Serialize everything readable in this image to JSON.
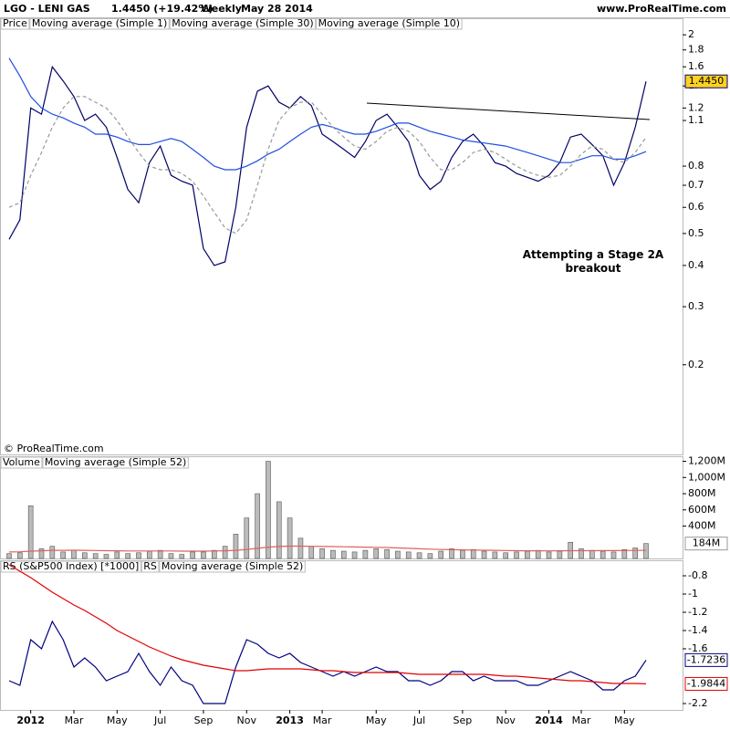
{
  "header": {
    "symbol": "LGO - LENI GAS",
    "quote": "1.4450 (+19.42%)",
    "period": "Weekly",
    "date": "May 28 2014",
    "site": "www.ProRealTime.com",
    "copyright": "© ProRealTime.com"
  },
  "chart_data": [
    {
      "type": "line",
      "panel_label": "Price",
      "log_scale": true,
      "annotation": "Attempting a Stage 2A breakout",
      "categories": [
        null,
        null,
        "2012",
        null,
        null,
        null,
        "Mar",
        null,
        null,
        null,
        "May",
        null,
        null,
        null,
        "Jul",
        null,
        null,
        null,
        "Sep",
        null,
        null,
        null,
        "Nov",
        null,
        null,
        null,
        "2013",
        null,
        null,
        "Mar",
        null,
        null,
        null,
        null,
        "May",
        null,
        null,
        null,
        "Jul",
        null,
        null,
        null,
        "Sep",
        null,
        null,
        null,
        "Nov",
        null,
        null,
        null,
        "2014",
        null,
        null,
        "Mar",
        null,
        null,
        null,
        "May",
        null,
        null
      ],
      "ylim": [
        0.107,
        2.08
      ],
      "yticks": [
        2,
        1.8,
        1.6,
        1.4,
        1.2,
        1.1,
        0.8,
        0.7,
        0.6,
        0.5,
        0.4,
        0.3,
        0.2
      ],
      "series": [
        {
          "name": "Moving average (Simple 1)",
          "color": "#000066",
          "dash": false,
          "values": [
            0.48,
            0.55,
            1.2,
            1.15,
            1.6,
            1.45,
            1.3,
            1.1,
            1.15,
            1.05,
            0.85,
            0.68,
            0.62,
            0.82,
            0.92,
            0.75,
            0.72,
            0.7,
            0.45,
            0.4,
            0.41,
            0.6,
            1.05,
            1.35,
            1.4,
            1.25,
            1.2,
            1.3,
            1.22,
            1.0,
            0.95,
            0.9,
            0.85,
            0.95,
            1.1,
            1.15,
            1.05,
            0.95,
            0.75,
            0.68,
            0.72,
            0.85,
            0.95,
            1.0,
            0.92,
            0.82,
            0.8,
            0.76,
            0.74,
            0.72,
            0.75,
            0.82,
            0.98,
            1.0,
            0.93,
            0.86,
            0.7,
            0.82,
            1.05,
            1.445
          ],
          "value_labels": [
            null,
            null,
            null,
            null,
            null,
            null,
            null,
            null,
            null,
            null,
            null,
            null,
            null,
            null,
            null,
            null,
            null,
            null,
            null,
            null,
            null,
            null,
            null,
            null,
            null,
            null,
            null,
            null,
            null,
            null,
            null,
            null,
            null,
            null,
            null,
            null,
            null,
            null,
            null,
            null,
            null,
            null,
            null,
            null,
            null,
            null,
            null,
            null,
            null,
            null,
            null,
            null,
            null,
            null,
            null,
            null,
            null,
            null,
            null,
            "1.4450"
          ]
        },
        {
          "name": "Moving average (Simple 30)",
          "color": "#1f4fe0",
          "dash": false,
          "values": [
            1.7,
            1.5,
            1.3,
            1.2,
            1.15,
            1.12,
            1.08,
            1.05,
            1.0,
            1.0,
            0.98,
            0.95,
            0.93,
            0.93,
            0.95,
            0.97,
            0.95,
            0.9,
            0.85,
            0.8,
            0.78,
            0.78,
            0.8,
            0.83,
            0.87,
            0.9,
            0.95,
            1.0,
            1.05,
            1.07,
            1.05,
            1.02,
            1.0,
            1.0,
            1.02,
            1.05,
            1.08,
            1.08,
            1.05,
            1.02,
            1.0,
            0.98,
            0.96,
            0.95,
            0.94,
            0.93,
            0.92,
            0.9,
            0.88,
            0.86,
            0.84,
            0.82,
            0.82,
            0.84,
            0.86,
            0.86,
            0.84,
            0.84,
            0.86,
            0.8855
          ]
        },
        {
          "name": "Moving average (Simple 10)",
          "color": "#999999",
          "dash": true,
          "values": [
            0.6,
            0.62,
            0.75,
            0.88,
            1.05,
            1.2,
            1.3,
            1.3,
            1.25,
            1.2,
            1.1,
            0.98,
            0.88,
            0.8,
            0.78,
            0.78,
            0.76,
            0.72,
            0.65,
            0.58,
            0.52,
            0.5,
            0.55,
            0.7,
            0.9,
            1.1,
            1.2,
            1.25,
            1.25,
            1.15,
            1.05,
            0.98,
            0.92,
            0.9,
            0.95,
            1.02,
            1.05,
            1.02,
            0.95,
            0.85,
            0.78,
            0.78,
            0.82,
            0.88,
            0.9,
            0.88,
            0.84,
            0.8,
            0.77,
            0.75,
            0.74,
            0.75,
            0.8,
            0.87,
            0.92,
            0.9,
            0.84,
            0.82,
            0.88,
            0.9775
          ]
        }
      ]
    },
    {
      "type": "bar",
      "panel_label": "Volume",
      "ylim": [
        0,
        1240
      ],
      "yticks": [
        {
          "value": 1200,
          "label": "1,200M"
        },
        {
          "value": 1000,
          "label": "1,000M"
        },
        {
          "value": 800,
          "label": "800M"
        },
        {
          "value": 600,
          "label": "600M"
        },
        {
          "value": 400,
          "label": "400M"
        }
      ],
      "series": [
        {
          "name": "Volume",
          "color": "#888888",
          "type": "bar",
          "values": [
            60,
            70,
            650,
            120,
            150,
            80,
            100,
            70,
            60,
            50,
            80,
            60,
            70,
            90,
            100,
            60,
            50,
            80,
            80,
            100,
            150,
            300,
            500,
            800,
            1200,
            700,
            500,
            250,
            150,
            120,
            100,
            90,
            80,
            100,
            120,
            110,
            90,
            80,
            70,
            60,
            90,
            120,
            100,
            110,
            90,
            80,
            70,
            80,
            90,
            100,
            80,
            90,
            200,
            120,
            100,
            90,
            80,
            110,
            130,
            184
          ],
          "value_labels": [
            null,
            null,
            null,
            null,
            null,
            null,
            null,
            null,
            null,
            null,
            null,
            null,
            null,
            null,
            null,
            null,
            null,
            null,
            null,
            null,
            null,
            null,
            null,
            null,
            null,
            null,
            null,
            null,
            null,
            null,
            null,
            null,
            null,
            null,
            null,
            null,
            null,
            null,
            null,
            null,
            null,
            null,
            null,
            null,
            null,
            null,
            null,
            null,
            null,
            null,
            null,
            null,
            null,
            null,
            null,
            null,
            null,
            null,
            null,
            "184M"
          ]
        },
        {
          "name": "Moving average (Simple 52)",
          "color": "#e06060",
          "type": "line",
          "values": [
            80,
            82,
            90,
            95,
            100,
            100,
            102,
            100,
            98,
            96,
            95,
            93,
            92,
            92,
            93,
            92,
            90,
            90,
            90,
            92,
            95,
            100,
            110,
            125,
            140,
            148,
            152,
            152,
            150,
            148,
            146,
            144,
            142,
            140,
            138,
            135,
            130,
            125,
            120,
            115,
            110,
            108,
            106,
            104,
            102,
            100,
            98,
            96,
            95,
            95,
            94,
            95,
            96,
            96,
            96,
            97,
            97,
            98,
            99,
            100
          ]
        }
      ]
    },
    {
      "type": "line",
      "panel_label": "RS (S&P500 Index) [*1000]",
      "ylim": [
        -2.27,
        -0.65
      ],
      "yticks": [
        -0.8,
        -1,
        -1.2,
        -1.4,
        -1.6,
        -2.2
      ],
      "series": [
        {
          "name": "RS",
          "color": "#000080",
          "dash": false,
          "values": [
            -1.95,
            -2.0,
            -1.5,
            -1.6,
            -1.3,
            -1.5,
            -1.8,
            -1.7,
            -1.8,
            -1.95,
            -1.9,
            -1.85,
            -1.65,
            -1.85,
            -2.0,
            -1.8,
            -1.95,
            -2.0,
            -2.2,
            -2.2,
            -2.2,
            -1.8,
            -1.5,
            -1.55,
            -1.65,
            -1.7,
            -1.65,
            -1.75,
            -1.8,
            -1.85,
            -1.9,
            -1.85,
            -1.9,
            -1.85,
            -1.8,
            -1.85,
            -1.85,
            -1.95,
            -1.95,
            -2.0,
            -1.95,
            -1.85,
            -1.85,
            -1.95,
            -1.9,
            -1.95,
            -1.95,
            -1.95,
            -2.0,
            -2.0,
            -1.95,
            -1.9,
            -1.85,
            -1.9,
            -1.95,
            -2.05,
            -2.05,
            -1.95,
            -1.9,
            -1.7236
          ],
          "value_labels": [
            null,
            null,
            null,
            null,
            null,
            null,
            null,
            null,
            null,
            null,
            null,
            null,
            null,
            null,
            null,
            null,
            null,
            null,
            null,
            null,
            null,
            null,
            null,
            null,
            null,
            null,
            null,
            null,
            null,
            null,
            null,
            null,
            null,
            null,
            null,
            null,
            null,
            null,
            null,
            null,
            null,
            null,
            null,
            null,
            null,
            null,
            null,
            null,
            null,
            null,
            null,
            null,
            null,
            null,
            null,
            null,
            null,
            null,
            null,
            "-1.7236"
          ]
        },
        {
          "name": "Moving average (Simple 52)",
          "color": "#e00000",
          "dash": false,
          "values": [
            -0.68,
            -0.75,
            -0.82,
            -0.9,
            -0.98,
            -1.05,
            -1.12,
            -1.18,
            -1.25,
            -1.32,
            -1.4,
            -1.46,
            -1.52,
            -1.58,
            -1.63,
            -1.68,
            -1.72,
            -1.75,
            -1.78,
            -1.8,
            -1.82,
            -1.84,
            -1.84,
            -1.83,
            -1.82,
            -1.82,
            -1.82,
            -1.82,
            -1.83,
            -1.84,
            -1.84,
            -1.85,
            -1.86,
            -1.86,
            -1.86,
            -1.86,
            -1.86,
            -1.87,
            -1.88,
            -1.88,
            -1.88,
            -1.88,
            -1.88,
            -1.88,
            -1.88,
            -1.89,
            -1.9,
            -1.9,
            -1.91,
            -1.92,
            -1.93,
            -1.94,
            -1.95,
            -1.95,
            -1.96,
            -1.97,
            -1.98,
            -1.98,
            -1.98,
            -1.9844
          ],
          "value_labels": [
            null,
            null,
            null,
            null,
            null,
            null,
            null,
            null,
            null,
            null,
            null,
            null,
            null,
            null,
            null,
            null,
            null,
            null,
            null,
            null,
            null,
            null,
            null,
            null,
            null,
            null,
            null,
            null,
            null,
            null,
            null,
            null,
            null,
            null,
            null,
            null,
            null,
            null,
            null,
            null,
            null,
            null,
            null,
            null,
            null,
            null,
            null,
            null,
            null,
            null,
            null,
            null,
            null,
            null,
            null,
            null,
            null,
            null,
            null,
            "-1.9844"
          ]
        }
      ]
    }
  ]
}
